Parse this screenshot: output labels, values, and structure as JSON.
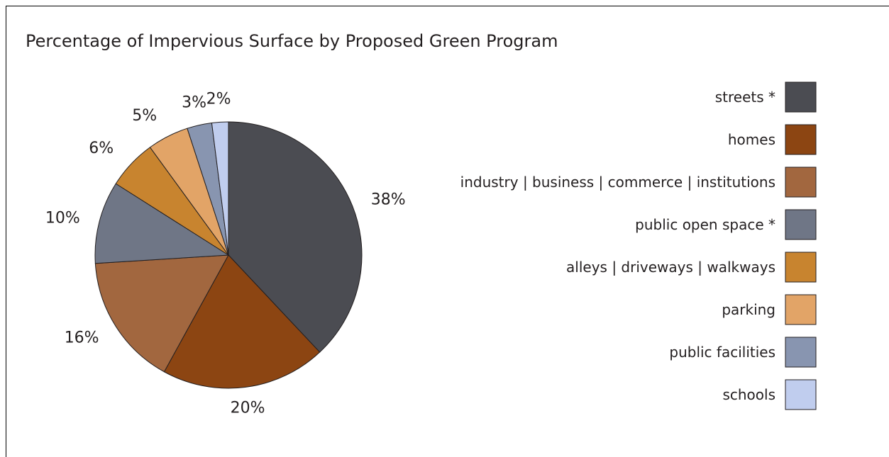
{
  "chart_data": {
    "type": "pie",
    "title": "Percentage of Impervious Surface by Proposed Green Program",
    "categories": [
      "streets *",
      "homes",
      "industry | business | commerce | institutions",
      "public open space *",
      "alleys | driveways | walkways",
      "parking",
      "public facilities",
      "schools"
    ],
    "values": [
      38,
      20,
      16,
      10,
      6,
      5,
      3,
      2
    ],
    "value_labels": [
      "38%",
      "20%",
      "16%",
      "10%",
      "6%",
      "5%",
      "3%",
      "2%"
    ],
    "colors": [
      "#4b4c52",
      "#8c4512",
      "#a2673f",
      "#6f7686",
      "#c8842f",
      "#e2a467",
      "#8895b0",
      "#c0cdee"
    ],
    "legend_placement": "right",
    "start_angle": "top, clockwise"
  }
}
